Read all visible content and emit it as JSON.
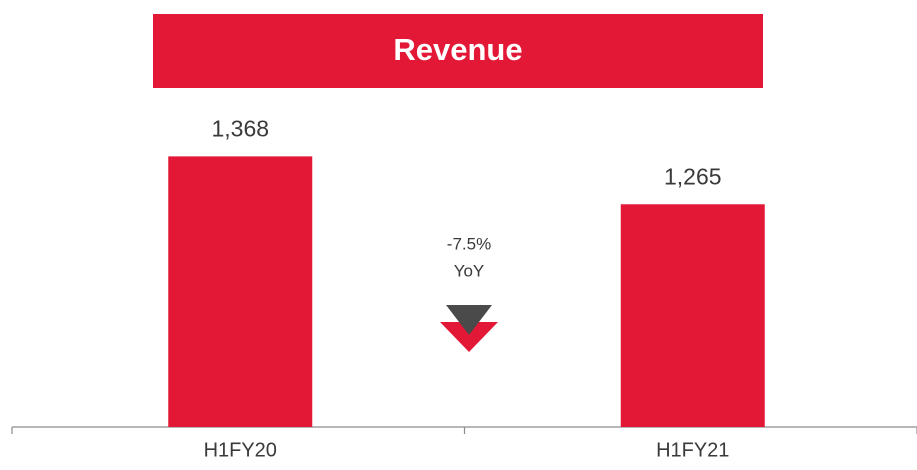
{
  "chart_data": {
    "type": "bar",
    "title": "Revenue",
    "categories": [
      "H1FY20",
      "H1FY21"
    ],
    "values": [
      1368,
      1265
    ],
    "value_labels": [
      "1,368",
      "1,265"
    ],
    "color": "#e31837",
    "ylim": [
      786,
      1500
    ],
    "annotations": [
      "-7.5%",
      "YoY"
    ]
  }
}
